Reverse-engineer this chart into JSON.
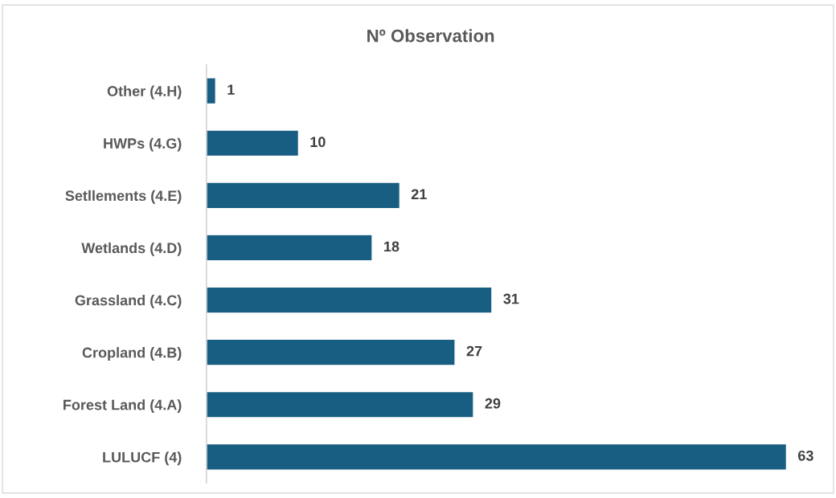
{
  "chart_data": {
    "type": "bar",
    "orientation": "horizontal",
    "title": "Nº Observation",
    "categories": [
      "Other (4.H)",
      "HWPs (4.G)",
      "Setllements (4.E)",
      "Wetlands (4.D)",
      "Grassland (4.C)",
      "Cropland (4.B)",
      "Forest Land (4.A)",
      "LULUCF (4)"
    ],
    "values": [
      1,
      10,
      21,
      18,
      31,
      27,
      29,
      63
    ],
    "color": "#175e82",
    "data_labels": true,
    "grid": false,
    "legend": false,
    "tick_labels": "y"
  }
}
